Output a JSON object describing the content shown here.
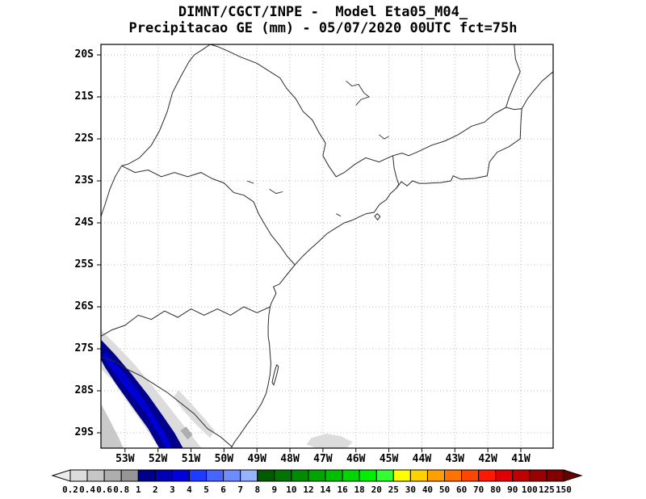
{
  "header": {
    "line1": "DIMNT/CGCT/INPE -  Model Eta05_M04_",
    "line2": "Precipitacao GE (mm) - 05/07/2020 00UTC fct=75h"
  },
  "chart_data": {
    "type": "heatmap",
    "title": "DIMNT/CGCT/INPE -  Model Eta05_M04_",
    "subtitle": "Precipitacao GE (mm) - 05/07/2020 00UTC fct=75h",
    "institution": "DIMNT/CGCT/INPE",
    "model": "Eta05_M04_",
    "field": "Precipitacao GE",
    "unit": "mm",
    "init_datetime": "05/07/2020 00UTC",
    "forecast_hour": "fct=75h",
    "axes": {
      "lat_ticks": [
        "20S",
        "21S",
        "22S",
        "23S",
        "24S",
        "25S",
        "26S",
        "27S",
        "28S",
        "29S"
      ],
      "lon_ticks": [
        "53W",
        "52W",
        "51W",
        "50W",
        "49W",
        "48W",
        "47W",
        "46W",
        "45W",
        "44W",
        "43W",
        "42W",
        "41W"
      ],
      "lat_range_deg_S": [
        19.75,
        29.37
      ],
      "lon_range_deg_W": [
        53.73,
        40.02
      ],
      "grid_style": "dotted"
    },
    "colorbar": {
      "orientation": "horizontal",
      "levels": [
        "0.2",
        "0.4",
        "0.6",
        "0.8",
        "1",
        "2",
        "3",
        "4",
        "5",
        "6",
        "7",
        "8",
        "9",
        "10",
        "12",
        "14",
        "16",
        "18",
        "20",
        "25",
        "30",
        "40",
        "50",
        "60",
        "70",
        "80",
        "90",
        "100",
        "125",
        "150"
      ],
      "colors": [
        "#ececec",
        "#dcdcdc",
        "#c6c6c6",
        "#aeaeae",
        "#969696",
        "#00008b",
        "#0000b4",
        "#0000dc",
        "#1e3cff",
        "#4664ff",
        "#6e8cff",
        "#96b4ff",
        "#005a00",
        "#007300",
        "#008c00",
        "#00a500",
        "#00be00",
        "#00d700",
        "#00f000",
        "#32ff32",
        "#ffff00",
        "#ffd200",
        "#ffa000",
        "#ff7300",
        "#ff4600",
        "#ff1900",
        "#e10000",
        "#be0000",
        "#9b0000",
        "#820000",
        "#690000"
      ]
    },
    "precip_regions": [
      {
        "name": "light-shield-outer",
        "value_range_mm": [
          0.2,
          0.4
        ],
        "color": "#dcdcdc",
        "points": [
          [
            53.73,
            26.55
          ],
          [
            53.25,
            26.92
          ],
          [
            52.7,
            27.38
          ],
          [
            52.15,
            27.9
          ],
          [
            51.6,
            28.45
          ],
          [
            51.1,
            28.95
          ],
          [
            50.68,
            29.365
          ],
          [
            51.98,
            29.365
          ],
          [
            52.4,
            28.85
          ],
          [
            52.9,
            28.3
          ],
          [
            53.38,
            27.75
          ],
          [
            53.73,
            27.48
          ]
        ]
      },
      {
        "name": "light-patch-east",
        "value_range_mm": [
          0.2,
          0.4
        ],
        "color": "#dcdcdc",
        "points": [
          [
            51.38,
            27.98
          ],
          [
            51.0,
            28.3
          ],
          [
            50.6,
            28.65
          ],
          [
            50.28,
            28.95
          ],
          [
            50.42,
            29.12
          ],
          [
            50.85,
            28.8
          ],
          [
            51.25,
            28.45
          ],
          [
            51.52,
            28.15
          ]
        ]
      },
      {
        "name": "light-patch-bottom",
        "value_range_mm": [
          0.2,
          0.4
        ],
        "color": "#dcdcdc",
        "points": [
          [
            47.35,
            29.12
          ],
          [
            46.9,
            29.02
          ],
          [
            46.45,
            29.08
          ],
          [
            46.1,
            29.22
          ],
          [
            46.28,
            29.365
          ],
          [
            47.18,
            29.365
          ],
          [
            47.5,
            29.28
          ]
        ]
      },
      {
        "name": "light-patch-corner",
        "value_range_mm": [
          0.2,
          0.6
        ],
        "color": "#c9c9c9",
        "points": [
          [
            53.73,
            28.3
          ],
          [
            53.45,
            28.72
          ],
          [
            53.2,
            29.1
          ],
          [
            53.05,
            29.365
          ],
          [
            53.73,
            29.365
          ]
        ]
      },
      {
        "name": "moderate-patch-1",
        "value_range_mm": [
          0.6,
          1
        ],
        "color": "#aeaeae",
        "points": [
          [
            52.62,
            27.98
          ],
          [
            52.3,
            28.28
          ],
          [
            52.45,
            28.45
          ],
          [
            52.76,
            28.15
          ]
        ]
      },
      {
        "name": "moderate-patch-2",
        "value_range_mm": [
          0.6,
          1
        ],
        "color": "#aeaeae",
        "points": [
          [
            51.15,
            28.85
          ],
          [
            50.95,
            29.05
          ],
          [
            51.1,
            29.16
          ],
          [
            51.32,
            28.95
          ]
        ]
      },
      {
        "name": "rain-band-core",
        "value_range_mm": [
          1,
          5
        ],
        "color": "#00008b",
        "points": [
          [
            53.73,
            26.78
          ],
          [
            53.3,
            27.14
          ],
          [
            52.8,
            27.6
          ],
          [
            52.3,
            28.1
          ],
          [
            51.85,
            28.6
          ],
          [
            51.5,
            29.0
          ],
          [
            51.24,
            29.365
          ],
          [
            51.96,
            29.365
          ],
          [
            52.3,
            28.9
          ],
          [
            52.76,
            28.4
          ],
          [
            53.26,
            27.85
          ],
          [
            53.6,
            27.45
          ],
          [
            53.73,
            27.26
          ]
        ]
      },
      {
        "name": "rain-band-inner",
        "value_range_mm": [
          2,
          4
        ],
        "color": "#0000d2",
        "points": [
          [
            53.62,
            27.05
          ],
          [
            53.16,
            27.46
          ],
          [
            52.7,
            27.9
          ],
          [
            52.3,
            28.36
          ],
          [
            51.95,
            28.8
          ],
          [
            51.7,
            29.14
          ],
          [
            51.56,
            29.365
          ],
          [
            51.76,
            29.365
          ],
          [
            52.02,
            29.0
          ],
          [
            52.4,
            28.5
          ],
          [
            52.86,
            28.05
          ],
          [
            53.3,
            27.6
          ],
          [
            53.66,
            27.2
          ]
        ]
      }
    ]
  }
}
